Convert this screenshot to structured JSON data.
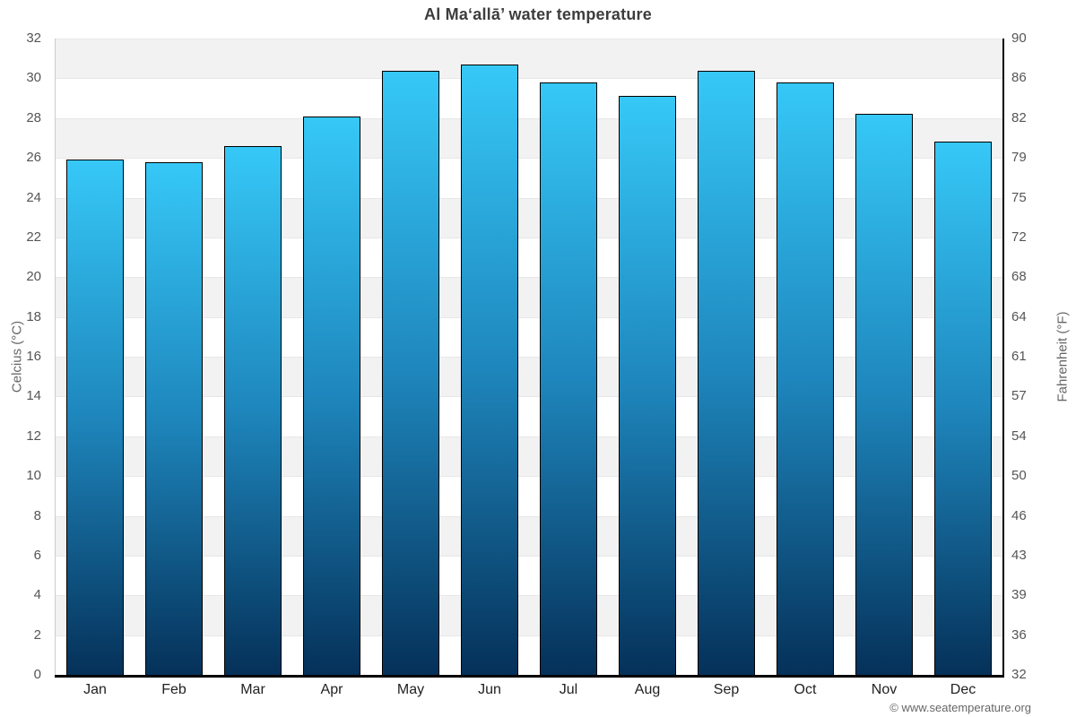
{
  "chart_data": {
    "type": "bar",
    "title": "Al Maʻallā’ water temperature",
    "categories": [
      "Jan",
      "Feb",
      "Mar",
      "Apr",
      "May",
      "Jun",
      "Jul",
      "Aug",
      "Sep",
      "Oct",
      "Nov",
      "Dec"
    ],
    "values": [
      25.9,
      25.8,
      26.6,
      28.1,
      30.4,
      30.7,
      29.8,
      29.1,
      30.4,
      29.8,
      28.2,
      26.8
    ],
    "unit": "°C",
    "ylabel_left": "Celcius (°C)",
    "ylabel_right": "Fahrenheit (°F)",
    "ylim": [
      0,
      32
    ],
    "tick_step_celsius": 2,
    "celsius_ticks": [
      0,
      2,
      4,
      6,
      8,
      10,
      12,
      14,
      16,
      18,
      20,
      22,
      24,
      26,
      28,
      30,
      32
    ],
    "fahrenheit_ticks": [
      32,
      36,
      39,
      43,
      46,
      50,
      54,
      57,
      61,
      64,
      68,
      72,
      75,
      79,
      82,
      86,
      90
    ],
    "grid": "horizontal alternating bands every 2°C",
    "legend": "none",
    "colors": {
      "bar_top": "#36c8f7",
      "bar_mid": "#1e86bc",
      "bar_bottom": "#053159",
      "bar_border": "#000000",
      "band": "#f2f2f2",
      "grid_line": "#e7e7e7",
      "axis_line": "#000000",
      "left_spine": "#cccccc"
    }
  },
  "footer": {
    "copyright": "© www.seatemperature.org"
  }
}
